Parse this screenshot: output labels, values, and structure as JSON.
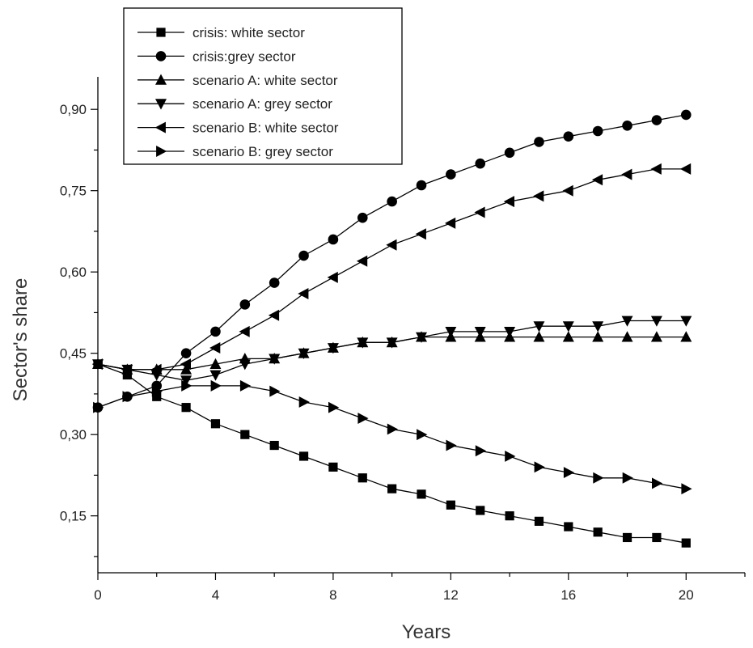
{
  "chart_data": {
    "type": "line",
    "title": "",
    "xlabel": "Years",
    "ylabel": "Sector's share",
    "xlim": [
      0,
      22
    ],
    "ylim": [
      0.045,
      0.96
    ],
    "xticks": [
      0,
      4,
      8,
      12,
      16,
      20
    ],
    "xtick_labels": [
      "0",
      "4",
      "8",
      "12",
      "16",
      "20"
    ],
    "yticks": [
      0.15,
      0.3,
      0.45,
      0.6,
      0.75,
      0.9
    ],
    "ytick_labels": [
      "0,15",
      "0,30",
      "0,45",
      "0,60",
      "0,75",
      "0,90"
    ],
    "grid": false,
    "legend_position": "top-left",
    "x": [
      0,
      1,
      2,
      3,
      4,
      5,
      6,
      7,
      8,
      9,
      10,
      11,
      12,
      13,
      14,
      15,
      16,
      17,
      18,
      19,
      20
    ],
    "series": [
      {
        "name": "crisis: white sector",
        "marker": "square",
        "values": [
          0.43,
          0.41,
          0.37,
          0.35,
          0.32,
          0.3,
          0.28,
          0.26,
          0.24,
          0.22,
          0.2,
          0.19,
          0.17,
          0.16,
          0.15,
          0.14,
          0.13,
          0.12,
          0.11,
          0.11,
          0.1
        ]
      },
      {
        "name": "crisis:grey sector",
        "marker": "circle",
        "values": [
          0.35,
          0.37,
          0.39,
          0.45,
          0.49,
          0.54,
          0.58,
          0.63,
          0.66,
          0.7,
          0.73,
          0.76,
          0.78,
          0.8,
          0.82,
          0.84,
          0.85,
          0.86,
          0.87,
          0.88,
          0.89
        ]
      },
      {
        "name": "scenario A: white sector",
        "marker": "triangle-up",
        "values": [
          0.43,
          0.42,
          0.42,
          0.42,
          0.43,
          0.44,
          0.44,
          0.45,
          0.46,
          0.47,
          0.47,
          0.48,
          0.48,
          0.48,
          0.48,
          0.48,
          0.48,
          0.48,
          0.48,
          0.48,
          0.48
        ]
      },
      {
        "name": "scenario A: grey sector",
        "marker": "triangle-down",
        "values": [
          0.43,
          0.42,
          0.41,
          0.4,
          0.41,
          0.43,
          0.44,
          0.45,
          0.46,
          0.47,
          0.47,
          0.48,
          0.49,
          0.49,
          0.49,
          0.5,
          0.5,
          0.5,
          0.51,
          0.51,
          0.51
        ]
      },
      {
        "name": "scenario B: white sector",
        "marker": "triangle-left",
        "values": [
          0.43,
          0.42,
          0.42,
          0.43,
          0.46,
          0.49,
          0.52,
          0.56,
          0.59,
          0.62,
          0.65,
          0.67,
          0.69,
          0.71,
          0.73,
          0.74,
          0.75,
          0.77,
          0.78,
          0.79,
          0.79
        ]
      },
      {
        "name": "scenario B: grey sector",
        "marker": "triangle-right",
        "values": [
          0.35,
          0.37,
          0.38,
          0.39,
          0.39,
          0.39,
          0.38,
          0.36,
          0.35,
          0.33,
          0.31,
          0.3,
          0.28,
          0.27,
          0.26,
          0.24,
          0.23,
          0.22,
          0.22,
          0.21,
          0.2
        ]
      }
    ]
  }
}
